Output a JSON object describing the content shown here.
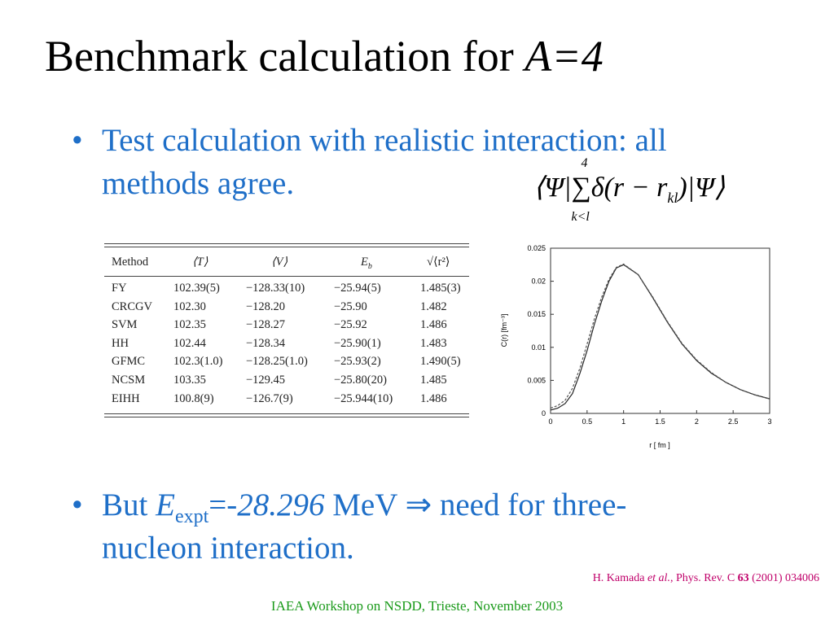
{
  "title": {
    "text": "Benchmark calculation for ",
    "italic": "A=4"
  },
  "bullets": [
    {
      "lines": [
        "Test calculation with realistic interaction: all",
        "methods agree."
      ]
    },
    {
      "parts": [
        "But ",
        "E",
        "expt",
        "=-",
        "28.296",
        " MeV ⇒ need for three-"
      ],
      "line2": "nucleon interaction."
    }
  ],
  "formula": {
    "left": "⟨Ψ|",
    "sum": "∑",
    "upper": "4",
    "lower": "k<l",
    "body": "δ(r − r",
    "sub": "kl",
    "right": ")|Ψ⟩"
  },
  "table": {
    "header": [
      "Method",
      "⟨T⟩",
      "⟨V⟩",
      "E",
      "√⟨r²⟩"
    ],
    "header_sub": "b",
    "rows": [
      [
        "FY",
        "102.39(5)",
        "−128.33(10)",
        "−25.94(5)",
        "1.485(3)"
      ],
      [
        "CRCGV",
        "102.30",
        "−128.20",
        "−25.90",
        "1.482"
      ],
      [
        "SVM",
        "102.35",
        "−128.27",
        "−25.92",
        "1.486"
      ],
      [
        "HH",
        "102.44",
        "−128.34",
        "−25.90(1)",
        "1.483"
      ],
      [
        "GFMC",
        "102.3(1.0)",
        "−128.25(1.0)",
        "−25.93(2)",
        "1.490(5)"
      ],
      [
        "NCSM",
        "103.35",
        "−129.45",
        "−25.80(20)",
        "1.485"
      ],
      [
        "EIHH",
        "100.8(9)",
        "−126.7(9)",
        "−25.944(10)",
        "1.486"
      ]
    ]
  },
  "chart": {
    "type": "line",
    "x_label": "r   [ fm ]",
    "y_label": "C(r)  [fm⁻³]",
    "x": [
      0,
      0.1,
      0.2,
      0.3,
      0.4,
      0.5,
      0.6,
      0.7,
      0.8,
      0.9,
      1.0,
      1.2,
      1.4,
      1.6,
      1.8,
      2.0,
      2.2,
      2.4,
      2.6,
      2.8,
      3.0
    ],
    "series": [
      {
        "color": "#222222",
        "values": [
          0.0005,
          0.0008,
          0.0015,
          0.003,
          0.006,
          0.0095,
          0.0135,
          0.017,
          0.02,
          0.022,
          0.0225,
          0.021,
          0.0175,
          0.0138,
          0.0105,
          0.008,
          0.0061,
          0.0047,
          0.0036,
          0.0028,
          0.0022
        ]
      },
      {
        "color": "#555555",
        "values": [
          0.0008,
          0.0012,
          0.002,
          0.0038,
          0.0068,
          0.0105,
          0.0143,
          0.0176,
          0.0203,
          0.0221,
          0.0226,
          0.021,
          0.0176,
          0.0139,
          0.0106,
          0.0081,
          0.0062,
          0.0047,
          0.0036,
          0.0028,
          0.0022
        ]
      }
    ],
    "xlim": [
      0,
      3
    ],
    "ylim": [
      0,
      0.025
    ],
    "xticks": [
      0,
      0.5,
      1,
      1.5,
      2,
      2.5,
      3
    ],
    "yticks": [
      0,
      0.005,
      0.01,
      0.015,
      0.02,
      0.025
    ]
  },
  "citation": {
    "a": "H. Kamada ",
    "b": "et al.",
    "c": ", Phys. Rev. C ",
    "d": "63",
    "e": " (2001) 034006"
  },
  "footer": "IAEA Workshop on NSDD, Trieste, November 2003"
}
